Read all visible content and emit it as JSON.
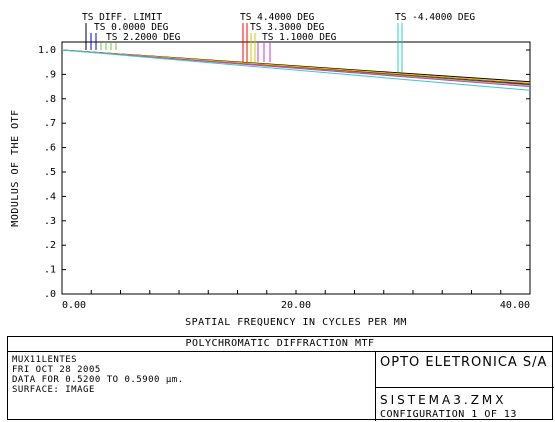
{
  "chart_data": {
    "type": "line",
    "ylabel": "MODULUS OF THE OTF",
    "xlabel": "SPATIAL FREQUENCY IN CYCLES PER MM",
    "xlim": [
      0,
      40
    ],
    "ylim": [
      0,
      1.0
    ],
    "x_ticks": [
      {
        "value": 0,
        "label": "0.00"
      },
      {
        "value": 20,
        "label": "20.00"
      },
      {
        "value": 40,
        "label": "40.00"
      }
    ],
    "y_ticks": [
      {
        "value": 0.0,
        "label": ".0"
      },
      {
        "value": 0.1,
        "label": ".1"
      },
      {
        "value": 0.2,
        "label": ".2"
      },
      {
        "value": 0.3,
        "label": ".3"
      },
      {
        "value": 0.4,
        "label": ".4"
      },
      {
        "value": 0.5,
        "label": ".5"
      },
      {
        "value": 0.6,
        "label": ".6"
      },
      {
        "value": 0.7,
        "label": ".7"
      },
      {
        "value": 0.8,
        "label": ".8"
      },
      {
        "value": 0.9,
        "label": ".9"
      },
      {
        "value": 1.0,
        "label": "1.0"
      }
    ],
    "grid": false,
    "series": [
      {
        "name": "TS DIFF. LIMIT",
        "color": "#000000",
        "x": [
          0,
          40
        ],
        "y": [
          1.0,
          0.87
        ]
      },
      {
        "name": "TS 0.0000 DEG",
        "color": "#0000cc",
        "x": [
          0,
          40
        ],
        "y": [
          1.0,
          0.858
        ]
      },
      {
        "name": "TS 2.2000 DEG",
        "color": "#66cc33",
        "x": [
          0,
          40
        ],
        "y": [
          1.0,
          0.855
        ]
      },
      {
        "name": "TS 4.4000 DEG",
        "color": "#ff0000",
        "x": [
          0,
          40
        ],
        "y": [
          1.0,
          0.862
        ]
      },
      {
        "name": "TS 3.3000 DEG",
        "color": "#cccc00",
        "x": [
          0,
          40
        ],
        "y": [
          1.0,
          0.865
        ]
      },
      {
        "name": "TS 1.1000 DEG",
        "color": "#cc33cc",
        "x": [
          0,
          40
        ],
        "y": [
          1.0,
          0.85
        ]
      },
      {
        "name": "TS -4.4000 DEG",
        "color": "#33cccc",
        "x": [
          0,
          40
        ],
        "y": [
          1.0,
          0.835
        ]
      }
    ]
  },
  "info": {
    "title": "POLYCHROMATIC DIFFRACTION MTF",
    "lines": [
      "MUX11LENTES",
      "FRI OCT 28 2005",
      "DATA FOR 0.5200 TO 0.5900 µm.",
      "SURFACE: IMAGE"
    ],
    "company": "OPTO ELETRONICA S/A",
    "filename": "SISTEMA3.ZMX",
    "configuration": "CONFIGURATION 1 OF 13"
  }
}
